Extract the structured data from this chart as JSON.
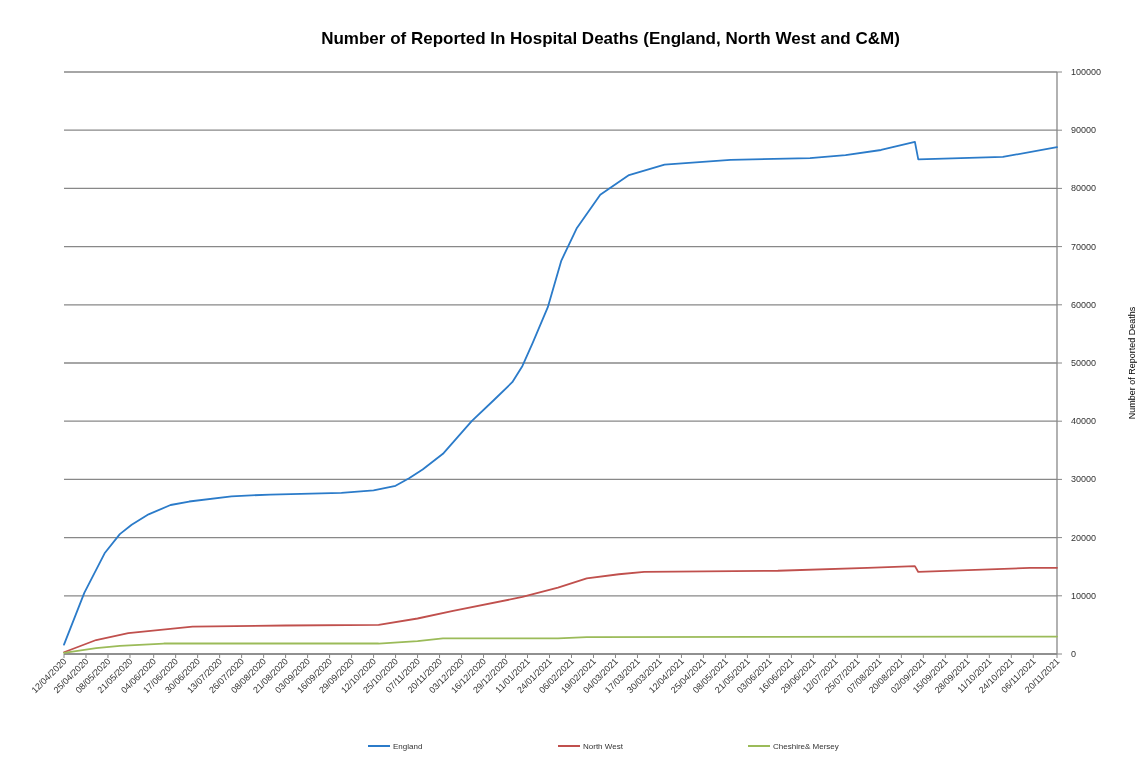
{
  "chart_data": {
    "type": "line",
    "title": "Number of Reported In Hospital Deaths (England, North West and C&M)",
    "ylabel": "Number of Reported Deaths",
    "xlim": [
      "2020-04-12",
      "2021-11-20"
    ],
    "xticks": [
      {
        "value": "2020-04-12",
        "label": "12/04/2020"
      },
      {
        "value": "2020-04-25",
        "label": "25/04/2020"
      },
      {
        "value": "2020-05-08",
        "label": "08/05/2020"
      },
      {
        "value": "2020-05-21",
        "label": "21/05/2020"
      },
      {
        "value": "2020-06-04",
        "label": "04/06/2020"
      },
      {
        "value": "2020-06-17",
        "label": "17/06/2020"
      },
      {
        "value": "2020-06-30",
        "label": "30/06/2020"
      },
      {
        "value": "2020-07-13",
        "label": "13/07/2020"
      },
      {
        "value": "2020-07-26",
        "label": "26/07/2020"
      },
      {
        "value": "2020-08-08",
        "label": "08/08/2020"
      },
      {
        "value": "2020-08-21",
        "label": "21/08/2020"
      },
      {
        "value": "2020-09-03",
        "label": "03/09/2020"
      },
      {
        "value": "2020-09-16",
        "label": "16/09/2020"
      },
      {
        "value": "2020-09-29",
        "label": "29/09/2020"
      },
      {
        "value": "2020-10-12",
        "label": "12/10/2020"
      },
      {
        "value": "2020-10-25",
        "label": "25/10/2020"
      },
      {
        "value": "2020-11-07",
        "label": "07/11/2020"
      },
      {
        "value": "2020-11-20",
        "label": "20/11/2020"
      },
      {
        "value": "2020-12-03",
        "label": "03/12/2020"
      },
      {
        "value": "2020-12-16",
        "label": "16/12/2020"
      },
      {
        "value": "2020-12-29",
        "label": "29/12/2020"
      },
      {
        "value": "2021-01-11",
        "label": "11/01/2021"
      },
      {
        "value": "2021-01-24",
        "label": "24/01/2021"
      },
      {
        "value": "2021-02-06",
        "label": "06/02/2021"
      },
      {
        "value": "2021-02-19",
        "label": "19/02/2021"
      },
      {
        "value": "2021-03-04",
        "label": "04/03/2021"
      },
      {
        "value": "2021-03-17",
        "label": "17/03/2021"
      },
      {
        "value": "2021-03-30",
        "label": "30/03/2021"
      },
      {
        "value": "2021-04-12",
        "label": "12/04/2021"
      },
      {
        "value": "2021-04-25",
        "label": "25/04/2021"
      },
      {
        "value": "2021-05-08",
        "label": "08/05/2021"
      },
      {
        "value": "2021-05-21",
        "label": "21/05/2021"
      },
      {
        "value": "2021-06-03",
        "label": "03/06/2021"
      },
      {
        "value": "2021-06-16",
        "label": "16/06/2021"
      },
      {
        "value": "2021-06-29",
        "label": "29/06/2021"
      },
      {
        "value": "2021-07-12",
        "label": "12/07/2021"
      },
      {
        "value": "2021-07-25",
        "label": "25/07/2021"
      },
      {
        "value": "2021-08-07",
        "label": "07/08/2021"
      },
      {
        "value": "2021-08-20",
        "label": "20/08/2021"
      },
      {
        "value": "2021-09-02",
        "label": "02/09/2021"
      },
      {
        "value": "2021-09-15",
        "label": "15/09/2021"
      },
      {
        "value": "2021-09-28",
        "label": "28/09/2021"
      },
      {
        "value": "2021-10-11",
        "label": "11/10/2021"
      },
      {
        "value": "2021-10-24",
        "label": "24/10/2021"
      },
      {
        "value": "2021-11-06",
        "label": "06/11/2021"
      },
      {
        "value": "2021-11-20",
        "label": "20/11/2021"
      }
    ],
    "ylim": [
      0,
      100000
    ],
    "yticks": [
      0,
      10000,
      20000,
      30000,
      40000,
      50000,
      60000,
      70000,
      80000,
      90000,
      100000
    ],
    "grid": "y",
    "legend": "bottom",
    "marker": "none",
    "line_style": "solid",
    "series": [
      {
        "name": "England",
        "color": "#2b7bc9",
        "x": [
          "2020-04-12",
          "2020-04-24",
          "2020-05-06",
          "2020-05-15",
          "2020-05-22",
          "2020-06-01",
          "2020-06-14",
          "2020-06-25",
          "2020-07-20",
          "2020-08-12",
          "2020-09-23",
          "2020-10-12",
          "2020-10-25",
          "2020-11-02",
          "2020-11-10",
          "2020-11-22",
          "2020-12-09",
          "2020-12-22",
          "2021-01-02",
          "2021-01-08",
          "2021-01-14",
          "2021-01-23",
          "2021-01-31",
          "2021-02-09",
          "2021-02-23",
          "2021-03-12",
          "2021-04-02",
          "2021-05-11",
          "2021-06-27",
          "2021-07-18",
          "2021-08-08",
          "2021-08-28",
          "2021-08-30",
          "2021-10-19",
          "2021-11-20"
        ],
        "values": [
          1600,
          10500,
          17300,
          20600,
          22200,
          24000,
          25600,
          26200,
          27100,
          27400,
          27700,
          28100,
          28900,
          30200,
          31700,
          34400,
          40000,
          43600,
          46700,
          49500,
          53400,
          59600,
          67600,
          73100,
          78900,
          82300,
          84100,
          84900,
          85200,
          85700,
          86600,
          88000,
          85000,
          85400,
          87100
        ]
      },
      {
        "name": "North West",
        "color": "#c0504d",
        "x": [
          "2020-04-12",
          "2020-05-01",
          "2020-05-20",
          "2020-06-27",
          "2020-08-21",
          "2020-10-15",
          "2020-11-07",
          "2020-11-28",
          "2021-01-08",
          "2021-01-29",
          "2021-02-15",
          "2021-03-06",
          "2021-03-21",
          "2021-06-08",
          "2021-07-31",
          "2021-08-28",
          "2021-08-30",
          "2021-11-04",
          "2021-11-20"
        ],
        "values": [
          300,
          2400,
          3600,
          4700,
          4900,
          5000,
          6100,
          7400,
          9800,
          11400,
          13000,
          13700,
          14100,
          14300,
          14800,
          15100,
          14100,
          14800,
          14800
        ]
      },
      {
        "name": "Cheshire& Mersey",
        "color": "#9bbb59",
        "x": [
          "2020-04-12",
          "2020-05-01",
          "2020-05-15",
          "2020-06-10",
          "2020-10-15",
          "2020-11-07",
          "2020-11-22",
          "2021-01-29",
          "2021-02-15",
          "2021-11-20"
        ],
        "values": [
          200,
          1000,
          1400,
          1800,
          1800,
          2200,
          2700,
          2700,
          2900,
          3000
        ]
      }
    ]
  }
}
